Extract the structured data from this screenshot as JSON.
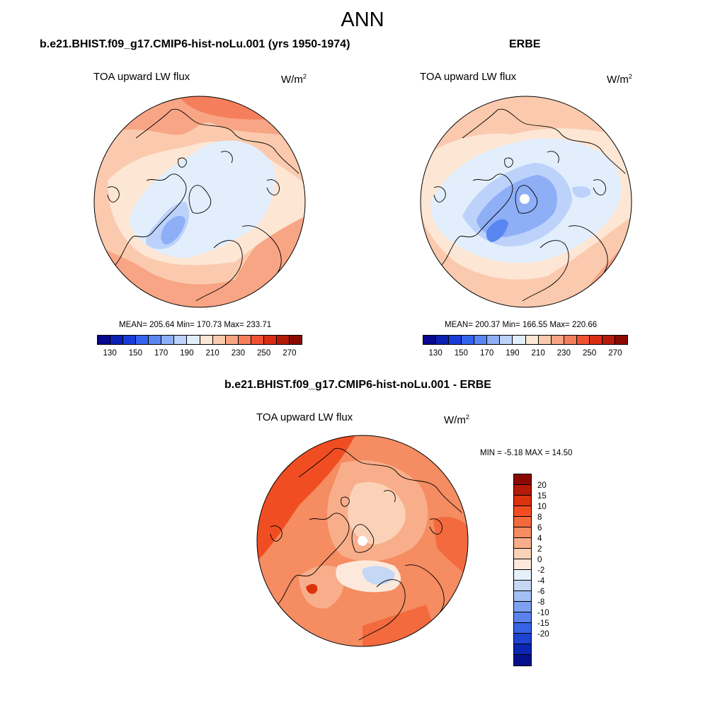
{
  "title": "ANN",
  "units_base": "W/m",
  "units_exp": "2",
  "panels": {
    "model": {
      "title": "b.e21.BHIST.f09_g17.CMIP6-hist-noLu.001 (yrs 1950-1974)",
      "field": "TOA upward LW flux",
      "stats": "MEAN= 205.64  Min= 170.73  Max= 233.71",
      "mean": 205.64,
      "min": 170.73,
      "max": 233.71
    },
    "obs": {
      "title": "ERBE",
      "field": "TOA upward LW flux",
      "stats": "MEAN= 200.37  Min= 166.55  Max= 220.66",
      "mean": 200.37,
      "min": 166.55,
      "max": 220.66
    },
    "diff": {
      "title": "b.e21.BHIST.f09_g17.CMIP6-hist-noLu.001 - ERBE",
      "field": "TOA upward LW flux",
      "stats": "MIN =  -5.18 MAX =  14.50",
      "min": -5.18,
      "max": 14.5
    }
  },
  "colorbar_abs": {
    "colors": [
      "#08088e",
      "#0c20b4",
      "#1a3cd8",
      "#3464ee",
      "#5a86f2",
      "#8eaef6",
      "#bcd2fa",
      "#e2eefc",
      "#fde6d4",
      "#fbcaae",
      "#f8a585",
      "#f57e5c",
      "#ee5232",
      "#d92e14",
      "#b51a08",
      "#8a0a02"
    ],
    "tick_labels": [
      "130",
      "150",
      "170",
      "190",
      "210",
      "230",
      "250",
      "270"
    ]
  },
  "colorbar_diff": {
    "colors": [
      "#8a0a02",
      "#b51a08",
      "#dc320e",
      "#f04e22",
      "#f36a3e",
      "#f58c62",
      "#f8ae8a",
      "#fbd2b8",
      "#fde9dc",
      "#e6f0fc",
      "#c4d8f6",
      "#a2c0f4",
      "#7ea2f0",
      "#5a82ec",
      "#3662e6",
      "#1e44d2",
      "#0c26b0",
      "#06108a"
    ],
    "tick_labels": [
      "20",
      "15",
      "10",
      "8",
      "6",
      "4",
      "2",
      "0",
      "-2",
      "-4",
      "-6",
      "-8",
      "-10",
      "-15",
      "-20"
    ]
  }
}
